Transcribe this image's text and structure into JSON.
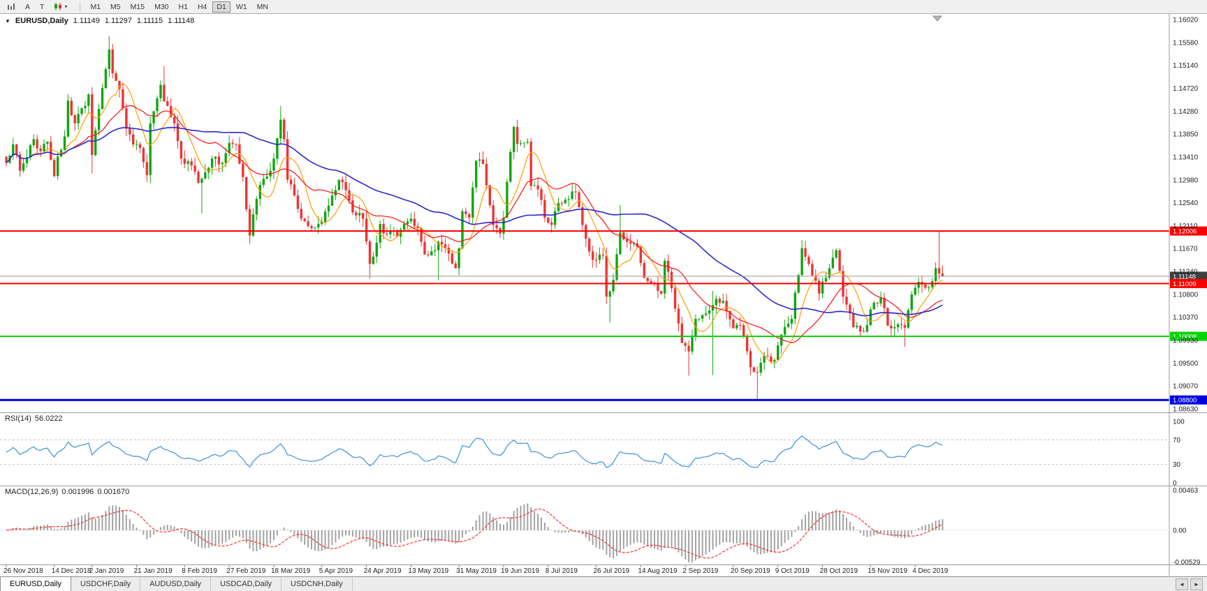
{
  "icons": {
    "dropdown": "▼",
    "chevron_down": "▾",
    "scroll_left": "◄",
    "scroll_right": "►"
  },
  "toolbar": {
    "tool_buttons": [
      "A",
      "T"
    ],
    "timeframes": [
      "M1",
      "M5",
      "M15",
      "M30",
      "H1",
      "H4",
      "D1",
      "W1",
      "MN"
    ],
    "active_timeframe": "D1"
  },
  "chart": {
    "symbol": "EURUSD,Daily",
    "open": "1.11149",
    "high": "1.11297",
    "low": "1.11115",
    "close": "1.11148"
  },
  "price_axis": [
    "1.16020",
    "1.15580",
    "1.15140",
    "1.14720",
    "1.14280",
    "1.13850",
    "1.13410",
    "1.12980",
    "1.12540",
    "1.12110",
    "1.11670",
    "1.11240",
    "1.10800",
    "1.10370",
    "1.09930",
    "1.09500",
    "1.09070",
    "1.08630"
  ],
  "levels": [
    {
      "value": "1.12006",
      "price": 1.12006,
      "color": "#f60000",
      "width": 2,
      "role": "resistance-line"
    },
    {
      "value": "1.11148",
      "price": 1.11148,
      "color": "#9a9a9a",
      "badge": "#3f3f3f",
      "width": 1,
      "role": "current-price-line"
    },
    {
      "value": "1.11009",
      "price": 1.11009,
      "color": "#f60000",
      "width": 2,
      "role": "support-line-red"
    },
    {
      "value": "1.10008",
      "price": 1.10008,
      "color": "#00d400",
      "width": 2,
      "role": "support-line-green"
    },
    {
      "value": "1.08800",
      "price": 1.088,
      "color": "#0000e0",
      "width": 3,
      "role": "support-line-blue"
    }
  ],
  "rsi": {
    "label": "RSI(14)",
    "value": "56.0222",
    "axis": [
      "100",
      "70",
      "30",
      "0"
    ],
    "upper_level": 70,
    "lower_level": 30,
    "line_color": "#3e8fd6"
  },
  "macd": {
    "label": "MACD(12,26,9)",
    "value_main": "0.001996",
    "value_signal": "0.001670",
    "axis_top": "0.00463",
    "axis_zero": "0.00",
    "axis_bottom": "-0.00529",
    "histogram_color": "#a2a2a2",
    "signal_color": "#f63030"
  },
  "time_axis": {
    "dates": [
      "26 Nov 2018",
      "14 Dec 2018",
      "2 Jan 2019",
      "21 Jan 2019",
      "8 Feb 2019",
      "27 Feb 2019",
      "18 Mar 2019",
      "5 Apr 2019",
      "24 Apr 2019",
      "13 May 2019",
      "31 May 2019",
      "19 Jun 2019",
      "8 Jul 2019",
      "26 Jul 2019",
      "14 Aug 2019",
      "2 Sep 2019",
      "20 Sep 2019",
      "9 Oct 2019",
      "28 Oct 2019",
      "15 Nov 2019",
      "4 Dec 2019"
    ],
    "bar_index": [
      0,
      14,
      25,
      38,
      52,
      65,
      78,
      92,
      105,
      118,
      132,
      145,
      158,
      172,
      185,
      198,
      212,
      225,
      238,
      252,
      265
    ]
  },
  "tabs": [
    "EURUSD,Daily",
    "USDCHF,Daily",
    "AUDUSD,Daily",
    "USDCAD,Daily",
    "USDCNH,Daily"
  ],
  "active_tab": 0,
  "chart_data": {
    "type": "candlestick",
    "symbol": "EURUSD",
    "timeframe": "Daily",
    "bars": 274,
    "price_range": [
      1.0863,
      1.1602
    ],
    "up_color": "#11a511",
    "down_color": "#ef3333",
    "overlays": [
      {
        "name": "ma-fast-orange",
        "period": 8,
        "color": "#ff9c00"
      },
      {
        "name": "ma-mid-red",
        "period": 20,
        "color": "#ff1010"
      },
      {
        "name": "ma-slow-blue",
        "period": 55,
        "color": "#2929cc"
      }
    ],
    "close_anchors": [
      [
        0,
        1.133
      ],
      [
        2,
        1.1365
      ],
      [
        4,
        1.1315
      ],
      [
        6,
        1.134
      ],
      [
        8,
        1.1375
      ],
      [
        10,
        1.1352
      ],
      [
        12,
        1.137
      ],
      [
        14,
        1.1305
      ],
      [
        15,
        1.1342
      ],
      [
        17,
        1.138
      ],
      [
        18,
        1.1448
      ],
      [
        20,
        1.1405
      ],
      [
        23,
        1.1438
      ],
      [
        24,
        1.146
      ],
      [
        25,
        1.1345
      ],
      [
        26,
        1.1392
      ],
      [
        28,
        1.1472
      ],
      [
        30,
        1.1545
      ],
      [
        31,
        1.15
      ],
      [
        33,
        1.147
      ],
      [
        35,
        1.1395
      ],
      [
        37,
        1.1365
      ],
      [
        39,
        1.1358
      ],
      [
        41,
        1.1307
      ],
      [
        42,
        1.1405
      ],
      [
        43,
        1.1428
      ],
      [
        45,
        1.1478
      ],
      [
        46,
        1.1447
      ],
      [
        49,
        1.1405
      ],
      [
        51,
        1.1338
      ],
      [
        54,
        1.1325
      ],
      [
        56,
        1.1292
      ],
      [
        58,
        1.1312
      ],
      [
        60,
        1.1338
      ],
      [
        63,
        1.133
      ],
      [
        65,
        1.1368
      ],
      [
        67,
        1.1365
      ],
      [
        69,
        1.1303
      ],
      [
        71,
        1.1192
      ],
      [
        72,
        1.1232
      ],
      [
        74,
        1.1288
      ],
      [
        76,
        1.1304
      ],
      [
        78,
        1.1338
      ],
      [
        80,
        1.1412
      ],
      [
        81,
        1.1375
      ],
      [
        82,
        1.1298
      ],
      [
        84,
        1.1268
      ],
      [
        86,
        1.1224
      ],
      [
        89,
        1.1206
      ],
      [
        92,
        1.1218
      ],
      [
        95,
        1.1268
      ],
      [
        97,
        1.1298
      ],
      [
        99,
        1.1278
      ],
      [
        101,
        1.1236
      ],
      [
        104,
        1.1224
      ],
      [
        106,
        1.1138
      ],
      [
        107,
        1.1152
      ],
      [
        109,
        1.1214
      ],
      [
        110,
        1.1196
      ],
      [
        112,
        1.12
      ],
      [
        114,
        1.119
      ],
      [
        116,
        1.1214
      ],
      [
        118,
        1.1224
      ],
      [
        120,
        1.1206
      ],
      [
        122,
        1.1156
      ],
      [
        124,
        1.1162
      ],
      [
        126,
        1.118
      ],
      [
        129,
        1.1158
      ],
      [
        131,
        1.113
      ],
      [
        132,
        1.1168
      ],
      [
        133,
        1.1238
      ],
      [
        135,
        1.1226
      ],
      [
        137,
        1.1334
      ],
      [
        139,
        1.1328
      ],
      [
        142,
        1.1212
      ],
      [
        144,
        1.1196
      ],
      [
        145,
        1.1226
      ],
      [
        146,
        1.1294
      ],
      [
        148,
        1.1398
      ],
      [
        149,
        1.1366
      ],
      [
        152,
        1.137
      ],
      [
        153,
        1.1286
      ],
      [
        155,
        1.128
      ],
      [
        157,
        1.1226
      ],
      [
        159,
        1.1212
      ],
      [
        161,
        1.1254
      ],
      [
        163,
        1.126
      ],
      [
        166,
        1.1274
      ],
      [
        168,
        1.1212
      ],
      [
        171,
        1.1146
      ],
      [
        174,
        1.1154
      ],
      [
        175,
        1.1076
      ],
      [
        176,
        1.1086
      ],
      [
        177,
        1.1108
      ],
      [
        179,
        1.1198
      ],
      [
        181,
        1.118
      ],
      [
        184,
        1.117
      ],
      [
        186,
        1.1112
      ],
      [
        189,
        1.11
      ],
      [
        191,
        1.1082
      ],
      [
        192,
        1.1144
      ],
      [
        194,
        1.1092
      ],
      [
        197,
        1.0988
      ],
      [
        199,
        1.0972
      ],
      [
        201,
        1.1034
      ],
      [
        204,
        1.1044
      ],
      [
        206,
        1.106
      ],
      [
        207,
        1.1072
      ],
      [
        209,
        1.1068
      ],
      [
        212,
        1.1016
      ],
      [
        214,
        1.1022
      ],
      [
        217,
        1.0942
      ],
      [
        219,
        1.0932
      ],
      [
        221,
        1.0964
      ],
      [
        224,
        1.0956
      ],
      [
        226,
        1.1004
      ],
      [
        229,
        1.1034
      ],
      [
        232,
        1.1168
      ],
      [
        233,
        1.1152
      ],
      [
        237,
        1.1082
      ],
      [
        241,
        1.115
      ],
      [
        242,
        1.1164
      ],
      [
        244,
        1.1076
      ],
      [
        247,
        1.1018
      ],
      [
        249,
        1.101
      ],
      [
        251,
        1.1022
      ],
      [
        252,
        1.1052
      ],
      [
        255,
        1.1074
      ],
      [
        257,
        1.1021
      ],
      [
        259,
        1.1018
      ],
      [
        262,
        1.1017
      ],
      [
        264,
        1.108
      ],
      [
        266,
        1.1104
      ],
      [
        269,
        1.1094
      ],
      [
        271,
        1.113
      ],
      [
        272,
        1.112
      ],
      [
        273,
        1.11148
      ]
    ],
    "wick_overrides": [
      {
        "i": 25,
        "l": 1.131
      },
      {
        "i": 30,
        "h": 1.157
      },
      {
        "i": 41,
        "l": 1.1308
      },
      {
        "i": 46,
        "h": 1.1514
      },
      {
        "i": 57,
        "l": 1.1234
      },
      {
        "i": 71,
        "l": 1.1176
      },
      {
        "i": 80,
        "h": 1.1438
      },
      {
        "i": 106,
        "l": 1.111
      },
      {
        "i": 126,
        "l": 1.1107
      },
      {
        "i": 149,
        "h": 1.1412
      },
      {
        "i": 176,
        "l": 1.1027
      },
      {
        "i": 179,
        "h": 1.125
      },
      {
        "i": 199,
        "l": 1.0926
      },
      {
        "i": 206,
        "l": 1.0927,
        "h": 1.1087
      },
      {
        "i": 219,
        "l": 1.0879
      },
      {
        "i": 232,
        "h": 1.1179
      },
      {
        "i": 262,
        "l": 1.0981
      },
      {
        "i": 272,
        "h": 1.12006
      }
    ]
  }
}
